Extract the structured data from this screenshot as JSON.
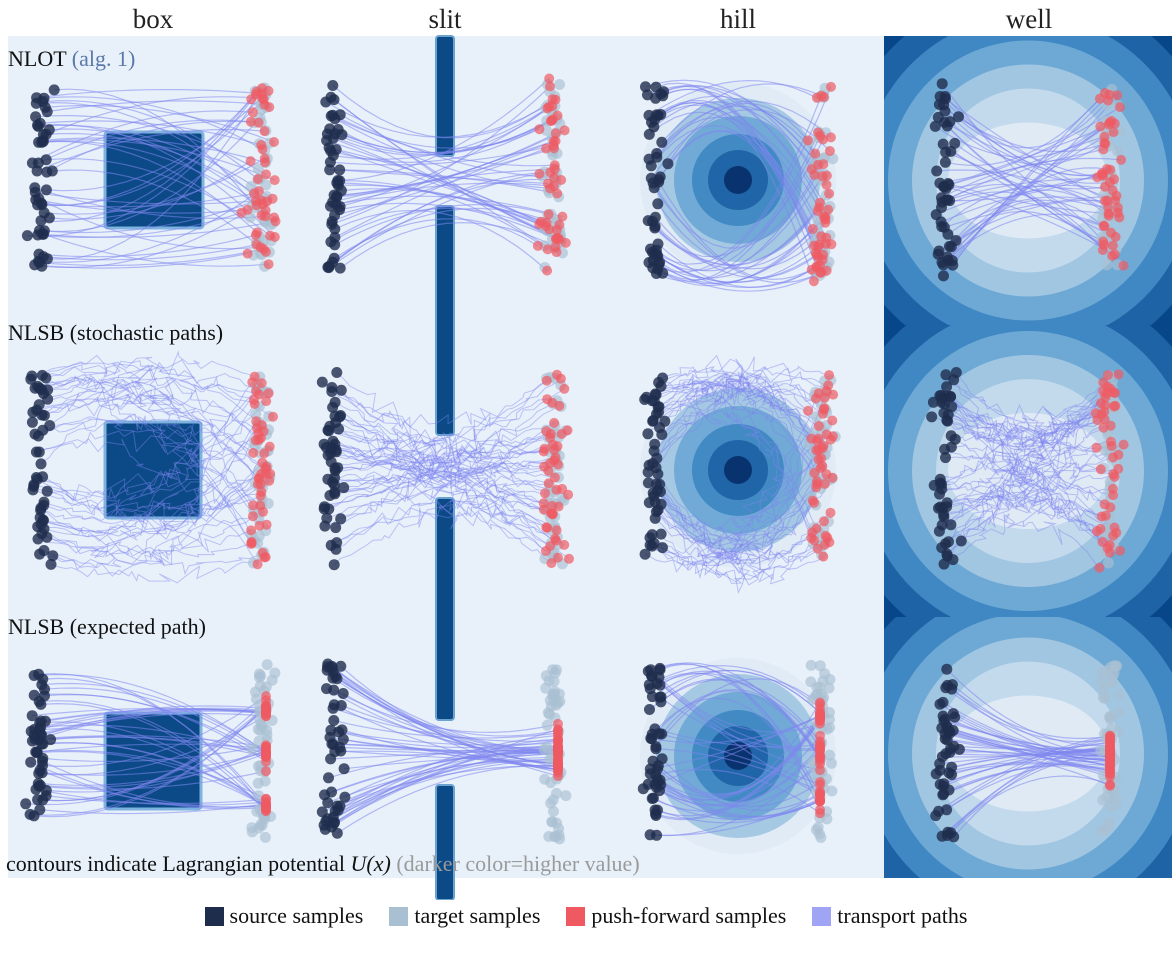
{
  "columns": [
    "box",
    "slit",
    "hill",
    "well"
  ],
  "rows": [
    {
      "label": "NLOT",
      "ref": "(alg. 1)",
      "mode": "deterministic"
    },
    {
      "label": "NLSB (stochastic paths)",
      "ref": "",
      "mode": "stochastic"
    },
    {
      "label": "NLSB (expected path)",
      "ref": "",
      "mode": "expected"
    }
  ],
  "caption": {
    "text": "contours indicate Lagrangian potential ",
    "formula": "U(x)",
    "note": " (darker color=higher value)"
  },
  "legend": [
    {
      "label": "source samples",
      "color": "#1f2d4d",
      "icon": "square-swatch"
    },
    {
      "label": "target samples",
      "color": "#a9c0d3",
      "icon": "square-swatch"
    },
    {
      "label": "push-forward samples",
      "color": "#ef5a62",
      "icon": "square-swatch"
    },
    {
      "label": "transport paths",
      "color": "#9fa4f5",
      "icon": "square-swatch"
    }
  ],
  "colors": {
    "panel_bg": "#e8f1fa",
    "obstacle": "#0b4a87",
    "path": "#7f86ef",
    "contour_levels": [
      "#ffffff",
      "#dfeaf5",
      "#c3d9ec",
      "#a1c6e2",
      "#6ea9d5",
      "#3f88c3",
      "#1d63a5",
      "#08468a",
      "#08306b"
    ]
  }
}
